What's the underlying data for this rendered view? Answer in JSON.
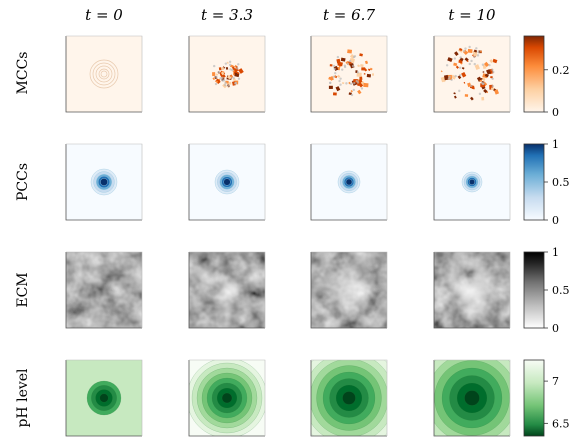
{
  "chart_data": {
    "type": "heatmap",
    "columns": [
      {
        "t_label": "t = 0"
      },
      {
        "t_label": "t = 3.3"
      },
      {
        "t_label": "t = 6.7"
      },
      {
        "t_label": "t = 10"
      }
    ],
    "rows": [
      {
        "label": "MCCs",
        "colormap": "Oranges",
        "colorbar_ticks": [
          "0.2",
          "0"
        ],
        "colorbar_tick_values": [
          0.2,
          0
        ],
        "colorbar_range": [
          0,
          0.36
        ]
      },
      {
        "label": "PCCs",
        "colormap": "Blues",
        "colorbar_ticks": [
          "1",
          "0.5",
          "0"
        ],
        "colorbar_tick_values": [
          1,
          0.5,
          0
        ],
        "colorbar_range": [
          0,
          1
        ]
      },
      {
        "label": "ECM",
        "colormap": "Greys",
        "colorbar_ticks": [
          "1",
          "0.5",
          "0"
        ],
        "colorbar_tick_values": [
          1,
          0.5,
          0
        ],
        "colorbar_range": [
          0,
          1
        ]
      },
      {
        "label": "pH level",
        "colormap": "Greens_r",
        "colorbar_ticks": [
          "7",
          "6.5"
        ],
        "colorbar_tick_values": [
          7,
          6.5
        ],
        "colorbar_range": [
          6.35,
          7.25
        ]
      }
    ],
    "colors": {
      "oranges": [
        "#fff5eb",
        "#fdd0a2",
        "#fd8d3c",
        "#d94801",
        "#7f2704"
      ],
      "blues": [
        "#f7fbff",
        "#c6dbef",
        "#6baed6",
        "#2171b5",
        "#08306b"
      ],
      "greys": [
        "#ffffff",
        "#bdbdbd",
        "#737373",
        "#252525",
        "#000000"
      ],
      "greens": [
        "#f7fcf5",
        "#c7e9c0",
        "#74c476",
        "#238b45",
        "#00441b"
      ]
    }
  }
}
